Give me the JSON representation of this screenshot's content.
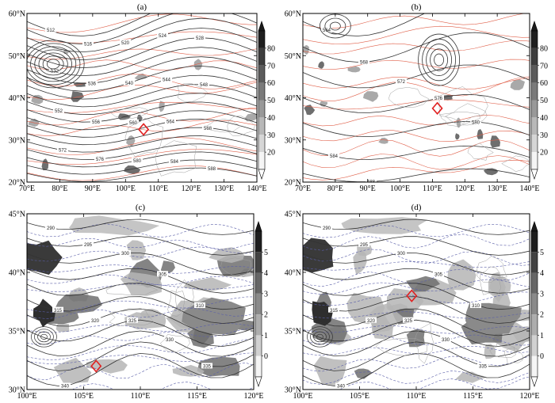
{
  "panels": [
    {
      "id": "a",
      "label": "(a)",
      "xticks": [
        "70°E",
        "80°E",
        "90°E",
        "100°E",
        "110°E",
        "120°E",
        "130°E",
        "140°E"
      ],
      "yticks": [
        "60°N",
        "50°N",
        "40°N",
        "30°N",
        "20°N"
      ],
      "colorbar": [
        "80",
        "70",
        "60",
        "50",
        "40",
        "30",
        "20"
      ],
      "contour_labels": [
        "512",
        "516",
        "520",
        "524",
        "528",
        "532",
        "536",
        "540",
        "544",
        "548",
        "552",
        "556",
        "560",
        "564",
        "568",
        "572",
        "576",
        "580",
        "584",
        "588"
      ],
      "marker": {
        "lon": 105.5,
        "lat": 32.5
      }
    },
    {
      "id": "b",
      "label": "(b)",
      "xticks": [
        "70°E",
        "80°E",
        "90°E",
        "100°E",
        "110°E",
        "120°E",
        "130°E",
        "140°E"
      ],
      "yticks": [
        "60°N",
        "50°N",
        "40°N",
        "30°N",
        "20°N"
      ],
      "colorbar": [
        "80",
        "70",
        "60",
        "50",
        "40",
        "30",
        "20"
      ],
      "contour_labels": [
        "564",
        "568",
        "572",
        "576",
        "580",
        "584",
        "588"
      ],
      "marker": {
        "lon": 111.5,
        "lat": 37.5
      }
    },
    {
      "id": "c",
      "label": "(c)",
      "xticks": [
        "100°E",
        "105°E",
        "110°E",
        "115°E",
        "120°E"
      ],
      "yticks": [
        "45°N",
        "40°N",
        "35°N",
        "30°N"
      ],
      "colorbar": [
        "5",
        "4",
        "3",
        "2",
        "1",
        "0"
      ],
      "contour_labels": [
        "290",
        "295",
        "300",
        "305",
        "310",
        "315",
        "320",
        "325",
        "330",
        "335",
        "340"
      ],
      "marker": {
        "lon": 106.1,
        "lat": 32.0
      }
    },
    {
      "id": "d",
      "label": "(d)",
      "xticks": [
        "100°E",
        "105°E",
        "110°E",
        "115°E",
        "120°E"
      ],
      "yticks": [
        "45°N",
        "40°N",
        "35°N",
        "30°N"
      ],
      "colorbar": [
        "5",
        "4",
        "3",
        "2",
        "1",
        "0"
      ],
      "contour_labels": [
        "290",
        "295",
        "300",
        "305",
        "310",
        "315",
        "320",
        "325",
        "330",
        "335",
        "340"
      ],
      "marker": {
        "lon": 109.6,
        "lat": 38.0
      }
    }
  ],
  "colors": {
    "contour": "#333333",
    "temperature": "#e0604a",
    "dashed": "#5b5fa8",
    "marker": "#e02020",
    "shade_dark": "#3a3a3a",
    "shade_light": "#d8d8d8"
  }
}
